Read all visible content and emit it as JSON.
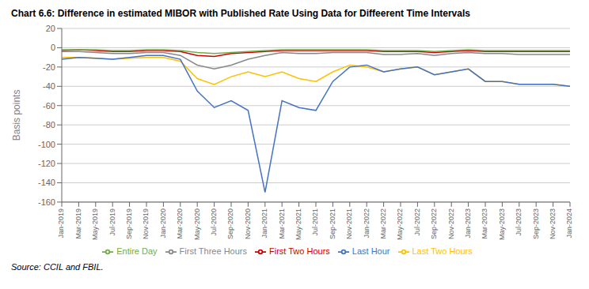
{
  "chart_data": {
    "type": "line",
    "title": "Chart 6.6: Difference in estimated MIBOR with Published Rate Using Data for Diffeerent Time Intervals",
    "y_label": "Basis points",
    "source": "Source: CCIL and FBIL.",
    "categories": [
      "Jan-2019",
      "Mar-2019",
      "May-2019",
      "Jul-2019",
      "Sep-2019",
      "Nov-2019",
      "Jan-2020",
      "Mar-2020",
      "May-2020",
      "Jul-2020",
      "Sep-2020",
      "Nov-2020",
      "Jan-2021",
      "Mar-2021",
      "May-2021",
      "Jul-2021",
      "Sep-2021",
      "Nov-2021",
      "Jan-2022",
      "Mar-2022",
      "May-2022",
      "Jul-2022",
      "Sep-2022",
      "Nov-2022",
      "Jan-2023",
      "Mar-2023",
      "May-2023",
      "Jul-2023",
      "Sep-2023",
      "Nov-2023",
      "Jan-2024"
    ],
    "series": [
      {
        "name": "First Two Hours",
        "color": "#cc0000",
        "values": [
          -3,
          -2,
          -3,
          -4,
          -4,
          -3,
          -3,
          -4,
          -8,
          -9,
          -6,
          -5,
          -4,
          -3,
          -3,
          -3,
          -3,
          -3,
          -3,
          -4,
          -4,
          -4,
          -5,
          -4,
          -3,
          -4,
          -4,
          -4,
          -4,
          -4,
          -4
        ]
      },
      {
        "name": "First Three Hours",
        "color": "#888888",
        "values": [
          -4,
          -4,
          -5,
          -6,
          -6,
          -5,
          -5,
          -8,
          -18,
          -22,
          -18,
          -12,
          -8,
          -5,
          -6,
          -6,
          -5,
          -5,
          -5,
          -7,
          -7,
          -6,
          -8,
          -6,
          -5,
          -6,
          -6,
          -7,
          -7,
          -7,
          -7
        ]
      },
      {
        "name": "Last Two Hours",
        "color": "#ffc000",
        "values": [
          -10,
          -10,
          -11,
          -12,
          -11,
          -10,
          -10,
          -14,
          -32,
          -38,
          -30,
          -25,
          -30,
          -25,
          -32,
          -35,
          -25,
          -18,
          -20,
          -25,
          -22,
          -20,
          -28,
          -25,
          -22,
          -35,
          -35,
          -38,
          -38,
          -38,
          -40
        ]
      },
      {
        "name": "Last Hour",
        "color": "#4472c4",
        "values": [
          -12,
          -10,
          -11,
          -12,
          -10,
          -8,
          -8,
          -12,
          -45,
          -62,
          -55,
          -65,
          -150,
          -55,
          -62,
          -65,
          -35,
          -20,
          -18,
          -25,
          -22,
          -20,
          -28,
          -25,
          -22,
          -35,
          -35,
          -38,
          -38,
          -38,
          -40
        ]
      },
      {
        "name": "Entire Day",
        "color": "#70ad47",
        "values": [
          -2,
          -2,
          -2,
          -3,
          -3,
          -2,
          -2,
          -3,
          -5,
          -6,
          -5,
          -4,
          -3,
          -2,
          -2,
          -2,
          -2,
          -2,
          -2,
          -3,
          -3,
          -3,
          -4,
          -3,
          -2,
          -3,
          -3,
          -3,
          -3,
          -3,
          -3
        ]
      }
    ],
    "ylim": [
      -160,
      20
    ],
    "yticks": [
      20,
      0,
      -20,
      -40,
      -60,
      -80,
      -100,
      -120,
      -140,
      -160
    ],
    "grid": true,
    "legend": "bottom"
  }
}
